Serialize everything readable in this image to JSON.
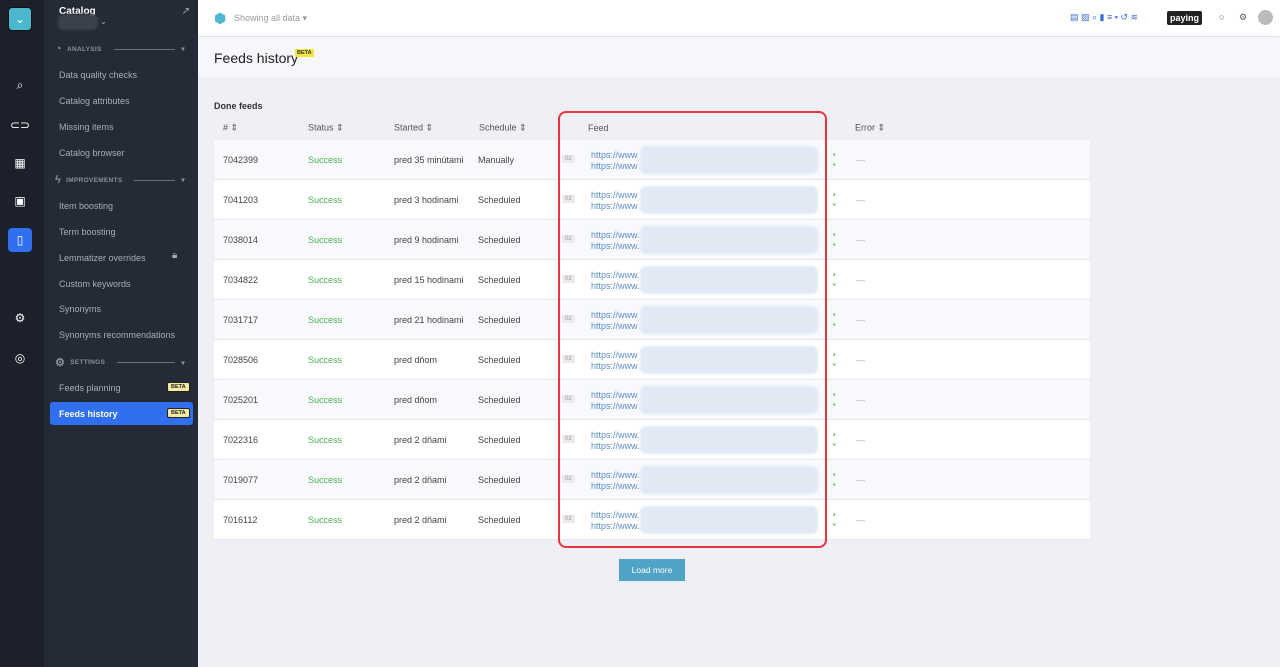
{
  "sidebar": {
    "catalog": "Catalog",
    "analysis": "ANALYSIS",
    "improvements": "IMPROVEMENTS",
    "settings": "SETTINGS",
    "analysis_items": [
      "Data quality checks",
      "Catalog attributes",
      "Missing items",
      "Catalog browser"
    ],
    "improvement_items": [
      "Item boosting",
      "Term boosting",
      "Lemmatizer overrides",
      "Custom keywords",
      "Synonyms",
      "Synonyms recommendations"
    ],
    "settings_items": [
      "Feeds planning",
      "Feeds history"
    ],
    "beta": "BETA"
  },
  "header": {
    "filter": "Showing all data",
    "plan": "paying"
  },
  "page": {
    "title": "Feeds history",
    "beta": "BETA",
    "section": "Done feeds",
    "load_more": "Load more"
  },
  "columns": [
    "#",
    "Status",
    "Started",
    "Schedule",
    "Feed",
    "Error"
  ],
  "rows": [
    {
      "id": "7042399",
      "status": "Success",
      "started": "pred 35 minútami",
      "schedule": "Manually",
      "tag": "02",
      "url1": "https://www",
      "url2": "https://www",
      "error": "—"
    },
    {
      "id": "7041203",
      "status": "Success",
      "started": "pred 3 hodinami",
      "schedule": "Scheduled",
      "tag": "02",
      "url1": "https://www",
      "url2": "https://www",
      "error": "—"
    },
    {
      "id": "7038014",
      "status": "Success",
      "started": "pred 9 hodinami",
      "schedule": "Scheduled",
      "tag": "02",
      "url1": "https://www.",
      "url2": "https://www.",
      "error": "—"
    },
    {
      "id": "7034822",
      "status": "Success",
      "started": "pred 15 hodinami",
      "schedule": "Scheduled",
      "tag": "02",
      "url1": "https://www.",
      "url2": "https://www.",
      "error": "—"
    },
    {
      "id": "7031717",
      "status": "Success",
      "started": "pred 21 hodinami",
      "schedule": "Scheduled",
      "tag": "02",
      "url1": "https://www",
      "url2": "https://www",
      "error": "—"
    },
    {
      "id": "7028506",
      "status": "Success",
      "started": "pred dňom",
      "schedule": "Scheduled",
      "tag": "02",
      "url1": "https://www",
      "url2": "https://www",
      "error": "—"
    },
    {
      "id": "7025201",
      "status": "Success",
      "started": "pred dňom",
      "schedule": "Scheduled",
      "tag": "02",
      "url1": "https://www",
      "url2": "https://www",
      "error": "—"
    },
    {
      "id": "7022316",
      "status": "Success",
      "started": "pred 2 dňami",
      "schedule": "Scheduled",
      "tag": "02",
      "url1": "https://www.",
      "url2": "https://www.",
      "error": "—"
    },
    {
      "id": "7019077",
      "status": "Success",
      "started": "pred 2 dňami",
      "schedule": "Scheduled",
      "tag": "02",
      "url1": "https://www.",
      "url2": "https://www.",
      "error": "—"
    },
    {
      "id": "7016112",
      "status": "Success",
      "started": "pred 2 dňami",
      "schedule": "Scheduled",
      "tag": "02",
      "url1": "https://www.",
      "url2": "https://www.",
      "error": "—"
    }
  ],
  "colors": {
    "accent": "#2f6ff0",
    "success": "#4caf50",
    "highlight": "#e8343c",
    "load_button": "#4fa3c7"
  }
}
